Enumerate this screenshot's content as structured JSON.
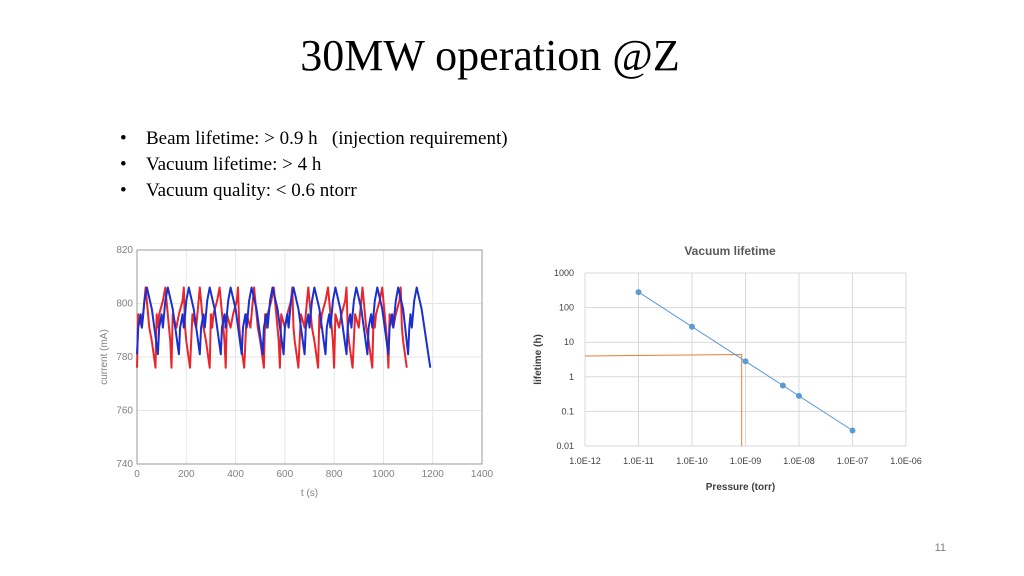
{
  "slide": {
    "title": "30MW operation @Z",
    "bullets": [
      {
        "label": "Beam lifetime: > 0.9 h   (injection requirement)"
      },
      {
        "label": "Vacuum lifetime: > 4 h"
      },
      {
        "label": "Vacuum quality: < 0.6 ntorr"
      }
    ],
    "bullet_glyph": "•",
    "page_number": "11"
  },
  "chart_data": [
    {
      "type": "line",
      "title": "",
      "xlabel": "t (s)",
      "ylabel": "current (mA)",
      "xlim": [
        0,
        1400
      ],
      "ylim": [
        740,
        820
      ],
      "xticks": [
        "0",
        "200",
        "400",
        "600",
        "800",
        "1000",
        "1200",
        "1400"
      ],
      "yticks": [
        "740",
        "760",
        "780",
        "800",
        "820"
      ],
      "grid": true,
      "legend": "none",
      "series": [
        {
          "color": "#e8262b",
          "x": [
            0,
            5,
            20,
            25,
            30,
            35,
            50,
            60,
            75,
            80,
            85,
            90,
            105,
            115,
            130,
            135,
            140,
            145,
            160,
            170,
            185,
            190,
            195,
            200,
            215,
            225,
            240,
            245,
            250,
            255,
            270,
            280,
            295,
            300,
            305,
            310,
            325,
            335,
            350,
            355,
            360,
            365,
            380,
            390,
            405,
            410,
            415,
            420,
            435,
            445,
            460,
            465,
            470,
            475,
            490,
            500,
            515,
            520,
            525,
            530,
            545,
            555,
            570,
            575,
            580,
            585,
            600,
            610,
            625,
            630,
            635,
            640,
            655,
            665,
            680,
            685,
            690,
            695,
            710,
            720,
            735,
            740,
            745,
            750,
            765,
            775,
            790,
            795,
            800,
            805,
            820,
            830,
            845,
            850,
            855,
            860,
            875,
            885,
            900,
            905,
            910,
            915,
            930,
            940,
            955,
            960,
            965,
            970,
            985,
            995,
            1010,
            1015,
            1020,
            1025,
            1040,
            1050,
            1065,
            1070,
            1075,
            1080,
            1095
          ],
          "y": [
            776,
            796,
            791,
            796,
            801,
            806,
            791,
            786,
            776,
            796,
            791,
            796,
            801,
            806,
            791,
            786,
            776,
            796,
            791,
            796,
            801,
            806,
            791,
            786,
            776,
            796,
            791,
            796,
            801,
            806,
            791,
            786,
            776,
            796,
            791,
            796,
            801,
            806,
            791,
            786,
            776,
            796,
            791,
            796,
            801,
            806,
            791,
            786,
            776,
            796,
            791,
            796,
            801,
            806,
            791,
            786,
            776,
            796,
            791,
            796,
            801,
            806,
            791,
            786,
            776,
            796,
            791,
            796,
            801,
            806,
            791,
            786,
            776,
            796,
            791,
            796,
            801,
            806,
            791,
            786,
            776,
            796,
            791,
            796,
            801,
            806,
            791,
            786,
            776,
            796,
            791,
            796,
            801,
            806,
            791,
            786,
            776,
            796,
            791,
            796,
            801,
            806,
            791,
            786,
            776,
            796,
            791,
            796,
            801,
            806,
            791,
            786,
            776,
            796,
            791,
            796,
            801,
            806,
            791,
            786,
            776
          ]
        },
        {
          "color": "#1a2fd0",
          "x": [
            0,
            5,
            15,
            20,
            25,
            30,
            40,
            60,
            85,
            90,
            100,
            105,
            110,
            115,
            125,
            145,
            170,
            175,
            185,
            190,
            195,
            200,
            210,
            230,
            255,
            260,
            270,
            275,
            280,
            285,
            295,
            315,
            340,
            345,
            355,
            360,
            365,
            370,
            380,
            400,
            425,
            430,
            440,
            445,
            450,
            455,
            465,
            485,
            510,
            515,
            525,
            530,
            535,
            540,
            550,
            570,
            595,
            600,
            610,
            615,
            620,
            625,
            635,
            655,
            680,
            685,
            695,
            700,
            705,
            710,
            720,
            740,
            765,
            770,
            780,
            785,
            790,
            795,
            805,
            825,
            850,
            855,
            865,
            870,
            875,
            880,
            890,
            910,
            935,
            940,
            950,
            955,
            960,
            965,
            975,
            995,
            1020,
            1025,
            1035,
            1040,
            1045,
            1050,
            1060,
            1080,
            1100,
            1105,
            1110,
            1115,
            1120,
            1125,
            1135,
            1155,
            1190
          ],
          "y": [
            781,
            791,
            796,
            791,
            796,
            801,
            806,
            798,
            781,
            791,
            796,
            791,
            796,
            801,
            806,
            798,
            781,
            791,
            796,
            791,
            796,
            801,
            806,
            798,
            781,
            791,
            796,
            791,
            796,
            801,
            806,
            798,
            781,
            791,
            796,
            791,
            796,
            801,
            806,
            798,
            781,
            791,
            796,
            791,
            796,
            801,
            806,
            798,
            781,
            791,
            796,
            791,
            796,
            801,
            806,
            798,
            781,
            791,
            796,
            791,
            796,
            801,
            806,
            798,
            781,
            791,
            796,
            791,
            796,
            801,
            806,
            798,
            781,
            791,
            796,
            791,
            796,
            801,
            806,
            798,
            781,
            791,
            796,
            791,
            796,
            801,
            806,
            798,
            781,
            791,
            796,
            791,
            796,
            801,
            806,
            798,
            781,
            791,
            796,
            791,
            796,
            801,
            806,
            798,
            781,
            791,
            796,
            791,
            796,
            801,
            806,
            798,
            776
          ]
        }
      ]
    },
    {
      "type": "scatter",
      "title": "Vacuum lifetime",
      "xlabel": "Pressure (torr)",
      "ylabel": "lifetime (h)",
      "xscale": "log",
      "yscale": "log",
      "xlim": [
        1e-12,
        1e-06
      ],
      "ylim": [
        0.01,
        1000
      ],
      "xticks": [
        "1.0E-12",
        "1.0E-11",
        "1.0E-10",
        "1.0E-09",
        "1.0E-08",
        "1.0E-07",
        "1.0E-06"
      ],
      "yticks": [
        "0.01",
        "0.1",
        "1",
        "10",
        "100",
        "1000"
      ],
      "grid": true,
      "legend": "none",
      "series": [
        {
          "color": "#5b9bd5",
          "x": [
            1e-11,
            1e-10,
            1e-09,
            5e-09,
            1e-08,
            1e-07
          ],
          "y": [
            280,
            28,
            2.8,
            0.56,
            0.28,
            0.028
          ]
        }
      ],
      "reference_lines": {
        "color": "#ed7d31",
        "points": [
          [
            1e-12,
            4.0
          ],
          [
            8.5e-10,
            4.4
          ],
          [
            8.5e-10,
            0.01
          ]
        ]
      }
    }
  ]
}
